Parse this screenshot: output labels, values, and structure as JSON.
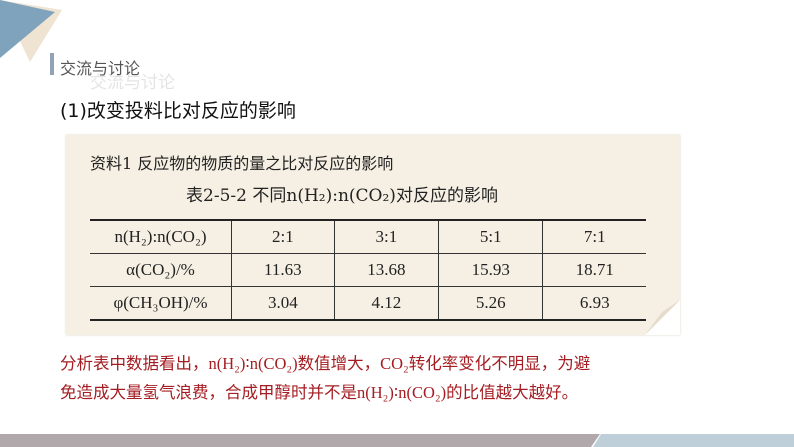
{
  "section_title": "交流与讨论",
  "heading": "(1)改变投料比对反应的影响",
  "resource_title": "资料1  反应物的物质的量之比对反应的影响",
  "table_caption": "表2-5-2 不同n(H₂):n(CO₂)对反应的影响",
  "table": {
    "rows": [
      [
        "n(H₂):n(CO₂)",
        "2:1",
        "3:1",
        "5:1",
        "7:1"
      ],
      [
        "α(CO₂)/%",
        "11.63",
        "13.68",
        "15.93",
        "18.71"
      ],
      [
        "φ(CH₃OH)/%",
        "3.04",
        "4.12",
        "5.26",
        "6.93"
      ]
    ]
  },
  "note_line1": "分析表中数据看出，n(H₂)∶n(CO₂)数值增大，CO₂转化率变化不明显，为避",
  "note_line2": "免造成大量氢气浪费，合成甲醇时并不是n(H₂)∶n(CO₂)的比值越大越好。",
  "colors": {
    "accent_blue": "#7fa3bd",
    "note_red": "#a51d22",
    "paper": "#f6f0e4"
  }
}
